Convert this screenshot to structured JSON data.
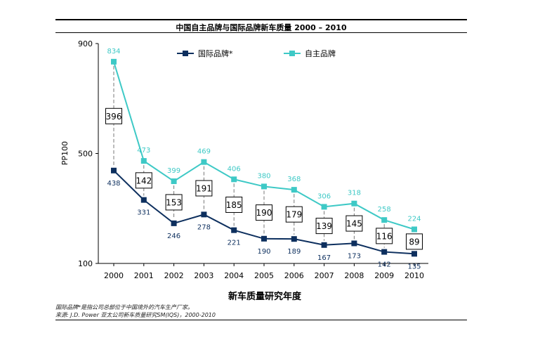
{
  "title": "中国自主品牌与国际品牌新车质量 2000 – 2010",
  "footnotes": {
    "line1": "国际品牌*是指公司总部位于中国境外的汽车生产厂家。",
    "line2": "来源: J.D. Power 亚太公司新车质量研究SM(IQS)，2000-2010"
  },
  "chart_data": {
    "type": "line",
    "title": "中国自主品牌与国际品牌新车质量 2000 – 2010",
    "xlabel": "新车质量研究年度",
    "ylabel": "PP100",
    "x": [
      "2000",
      "2001",
      "2002",
      "2003",
      "2004",
      "2005",
      "2006",
      "2007",
      "2008",
      "2009",
      "2010"
    ],
    "ylim": [
      100,
      900
    ],
    "yticks": [
      100,
      500,
      900
    ],
    "grid": false,
    "legend_position": "top",
    "series": [
      {
        "name": "国际品牌*",
        "color": "#0d2f5e",
        "values": [
          438,
          331,
          246,
          278,
          221,
          190,
          189,
          167,
          173,
          142,
          135
        ]
      },
      {
        "name": "自主品牌",
        "color": "#3ec9c6",
        "values": [
          834,
          473,
          399,
          469,
          406,
          380,
          368,
          306,
          318,
          258,
          224
        ]
      }
    ],
    "gaps": [
      396,
      142,
      153,
      191,
      185,
      190,
      179,
      139,
      145,
      116,
      89
    ]
  }
}
